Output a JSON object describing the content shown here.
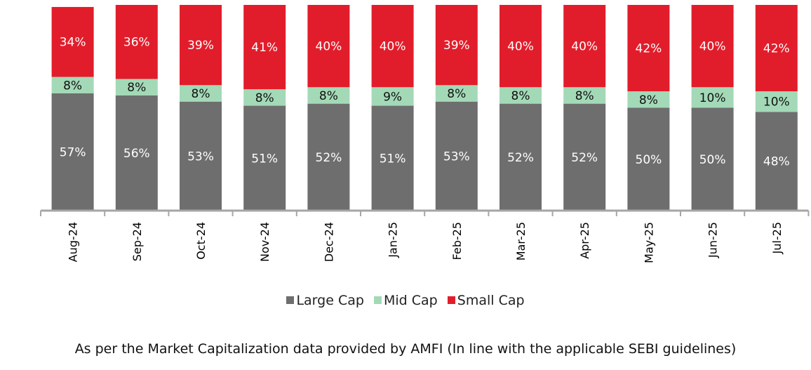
{
  "chart_data": {
    "type": "bar",
    "stacked": true,
    "categories": [
      "Aug-24",
      "Sep-24",
      "Oct-24",
      "Nov-24",
      "Dec-24",
      "Jan-25",
      "Feb-25",
      "Mar-25",
      "Apr-25",
      "May-25",
      "Jun-25",
      "Jul-25"
    ],
    "series": [
      {
        "name": "Large Cap",
        "color": "#6e6e6e",
        "label_color": "#ffffff",
        "values": [
          57,
          56,
          53,
          51,
          52,
          51,
          53,
          52,
          52,
          50,
          50,
          48
        ]
      },
      {
        "name": "Mid Cap",
        "color": "#a3d9b7",
        "label_color": "#111111",
        "values": [
          8,
          8,
          8,
          8,
          8,
          9,
          8,
          8,
          8,
          8,
          10,
          10
        ]
      },
      {
        "name": "Small Cap",
        "color": "#e21d2b",
        "label_color": "#ffffff",
        "values": [
          34,
          36,
          39,
          41,
          40,
          40,
          39,
          40,
          40,
          42,
          40,
          42
        ]
      }
    ],
    "value_suffix": "%",
    "legend_position": "bottom",
    "grid": false
  },
  "footnote": "As per the Market Capitalization data provided by AMFI (In line with the applicable SEBI guidelines)"
}
